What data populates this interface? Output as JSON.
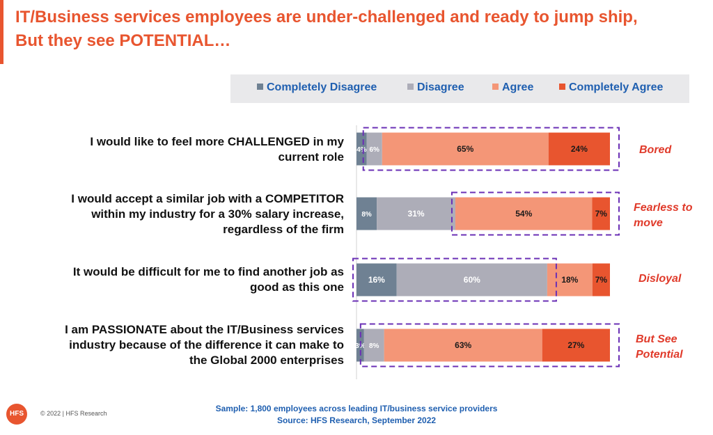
{
  "title": {
    "line1": "IT/Business services employees are under-challenged and ready to jump ship,",
    "line2": "But they see POTENTIAL…"
  },
  "colors": {
    "completely_disagree": "#6f8193",
    "disagree": "#adadb8",
    "agree": "#f49677",
    "completely_agree": "#e8552f",
    "accent": "#e8552f",
    "callout": "#e03a2a",
    "highlight_box": "#6a2fb5"
  },
  "chart_data": {
    "type": "bar",
    "orientation": "horizontal",
    "stacked": true,
    "xlim": [
      0,
      100
    ],
    "grid": false,
    "legend_position": "top",
    "categories": [
      "I would like to feel more CHALLENGED in my current role",
      "I would accept a similar job with a COMPETITOR within my industry for a 30% salary increase, regardless of the firm",
      "It would be difficult for me to find another job as good as this one",
      "I am PASSIONATE about the IT/Business services industry because of the difference it can make to the Global 2000 enterprises"
    ],
    "series": [
      {
        "name": "Completely Disagree",
        "values": [
          4,
          8,
          16,
          3
        ],
        "labels": [
          "4%",
          "8%",
          "16%",
          "3%"
        ]
      },
      {
        "name": "Disagree",
        "values": [
          6,
          31,
          60,
          8
        ],
        "labels": [
          "6%",
          "31%",
          "60%",
          "8%"
        ]
      },
      {
        "name": "Agree",
        "values": [
          65,
          54,
          18,
          63
        ],
        "labels": [
          "65%",
          "54%",
          "18%",
          "63%"
        ]
      },
      {
        "name": "Completely Agree",
        "values": [
          24,
          7,
          7,
          27
        ],
        "labels": [
          "24%",
          "7%",
          "7%",
          "27%"
        ]
      }
    ],
    "highlight_segments": [
      {
        "category": 0,
        "series": [
          "Disagree",
          "Agree",
          "Completely Agree"
        ]
      },
      {
        "category": 1,
        "series": [
          "Agree",
          "Completely Agree"
        ]
      },
      {
        "category": 2,
        "series": [
          "Completely Disagree",
          "Disagree"
        ]
      },
      {
        "category": 3,
        "series": [
          "Disagree",
          "Agree",
          "Completely Agree"
        ]
      }
    ],
    "callouts": [
      "Bored",
      "Fearless to move",
      "Disloyal",
      "But See Potential"
    ]
  },
  "rows": [
    {
      "lines": [
        "I would like to feel more CHALLENGED in my",
        "current role"
      ]
    },
    {
      "lines": [
        "I would accept a similar job with a COMPETITOR",
        "within my industry for a 30% salary increase,",
        "regardless of the firm"
      ]
    },
    {
      "lines": [
        "It would be difficult for me to find another job as",
        "good as this one"
      ]
    },
    {
      "lines": [
        "I am PASSIONATE about the IT/Business services",
        "industry because of the difference it can make to",
        "the Global 2000 enterprises"
      ]
    }
  ],
  "callouts": [
    {
      "lines": [
        "Bored"
      ]
    },
    {
      "lines": [
        "Fearless to",
        "move"
      ]
    },
    {
      "lines": [
        "Disloyal"
      ]
    },
    {
      "lines": [
        "But See",
        "Potential"
      ]
    }
  ],
  "footer": {
    "sample": "Sample: 1,800 employees across leading IT/business service providers",
    "source": "Source: HFS Research, September 2022",
    "copyright": "© 2022 | HFS Research",
    "logo_text": "HFS"
  }
}
